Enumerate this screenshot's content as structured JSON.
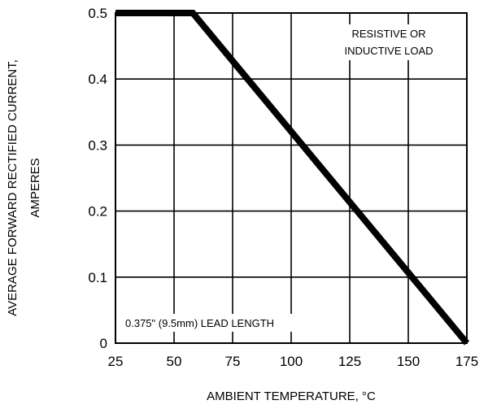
{
  "chart_data": {
    "type": "line",
    "title": "",
    "xlabel": "AMBIENT TEMPERATURE, °C",
    "ylabel_lines": [
      "AVERAGE FORWARD RECTIFIED CURRENT,",
      "AMPERES"
    ],
    "xlim": [
      25,
      175
    ],
    "ylim": [
      0,
      0.5
    ],
    "x_ticks": [
      25,
      50,
      75,
      100,
      125,
      150,
      175
    ],
    "x_tick_labels": [
      "25",
      "50",
      "75",
      "100",
      "125",
      "150",
      "175"
    ],
    "y_ticks": [
      0,
      0.1,
      0.2,
      0.3,
      0.4,
      0.5
    ],
    "y_tick_labels": [
      "0",
      "0.1",
      "0.2",
      "0.3",
      "0.4",
      "0.5"
    ],
    "grid": true,
    "series": [
      {
        "x": [
          25,
          58,
          175
        ],
        "y": [
          0.5,
          0.5,
          0
        ]
      }
    ],
    "annotations": [
      {
        "lines": [
          "RESISTIVE OR",
          "INDUCTIVE LOAD"
        ],
        "placement": "top-right"
      },
      {
        "lines": [
          "0.375\" (9.5mm) LEAD LENGTH"
        ],
        "placement": "bottom-left"
      }
    ],
    "colors": {
      "line": "#000000",
      "grid": "#000000",
      "background": "#ffffff"
    }
  }
}
